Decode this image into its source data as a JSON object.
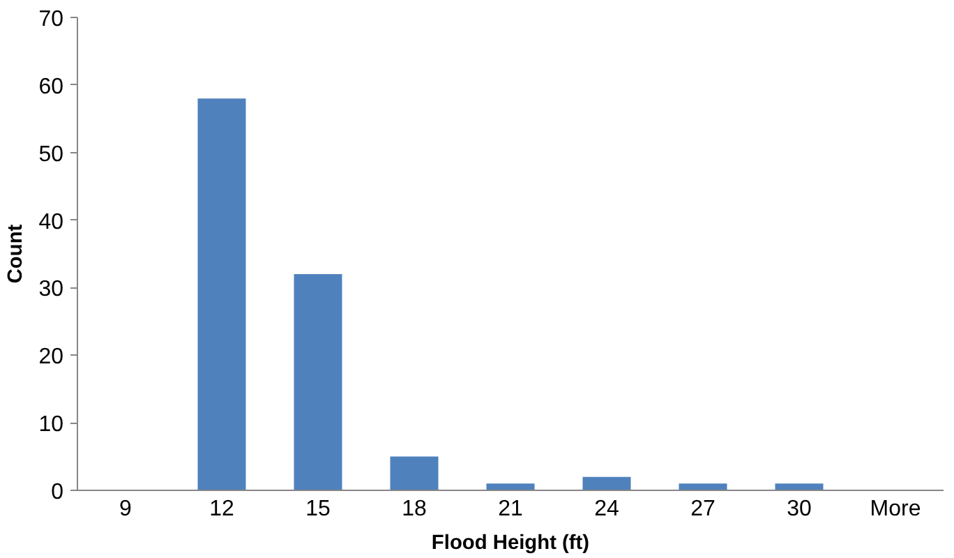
{
  "chart_data": {
    "type": "bar",
    "xlabel": "Flood Height (ft)",
    "ylabel": "Count",
    "categories": [
      "9",
      "12",
      "15",
      "18",
      "21",
      "24",
      "27",
      "30",
      "More"
    ],
    "values": [
      0,
      58,
      32,
      5,
      1,
      2,
      1,
      1,
      0
    ],
    "color": "#4f81bd",
    "ylim": [
      0,
      70
    ],
    "yticks": [
      0,
      10,
      20,
      30,
      40,
      50,
      60,
      70
    ],
    "grid": false
  }
}
